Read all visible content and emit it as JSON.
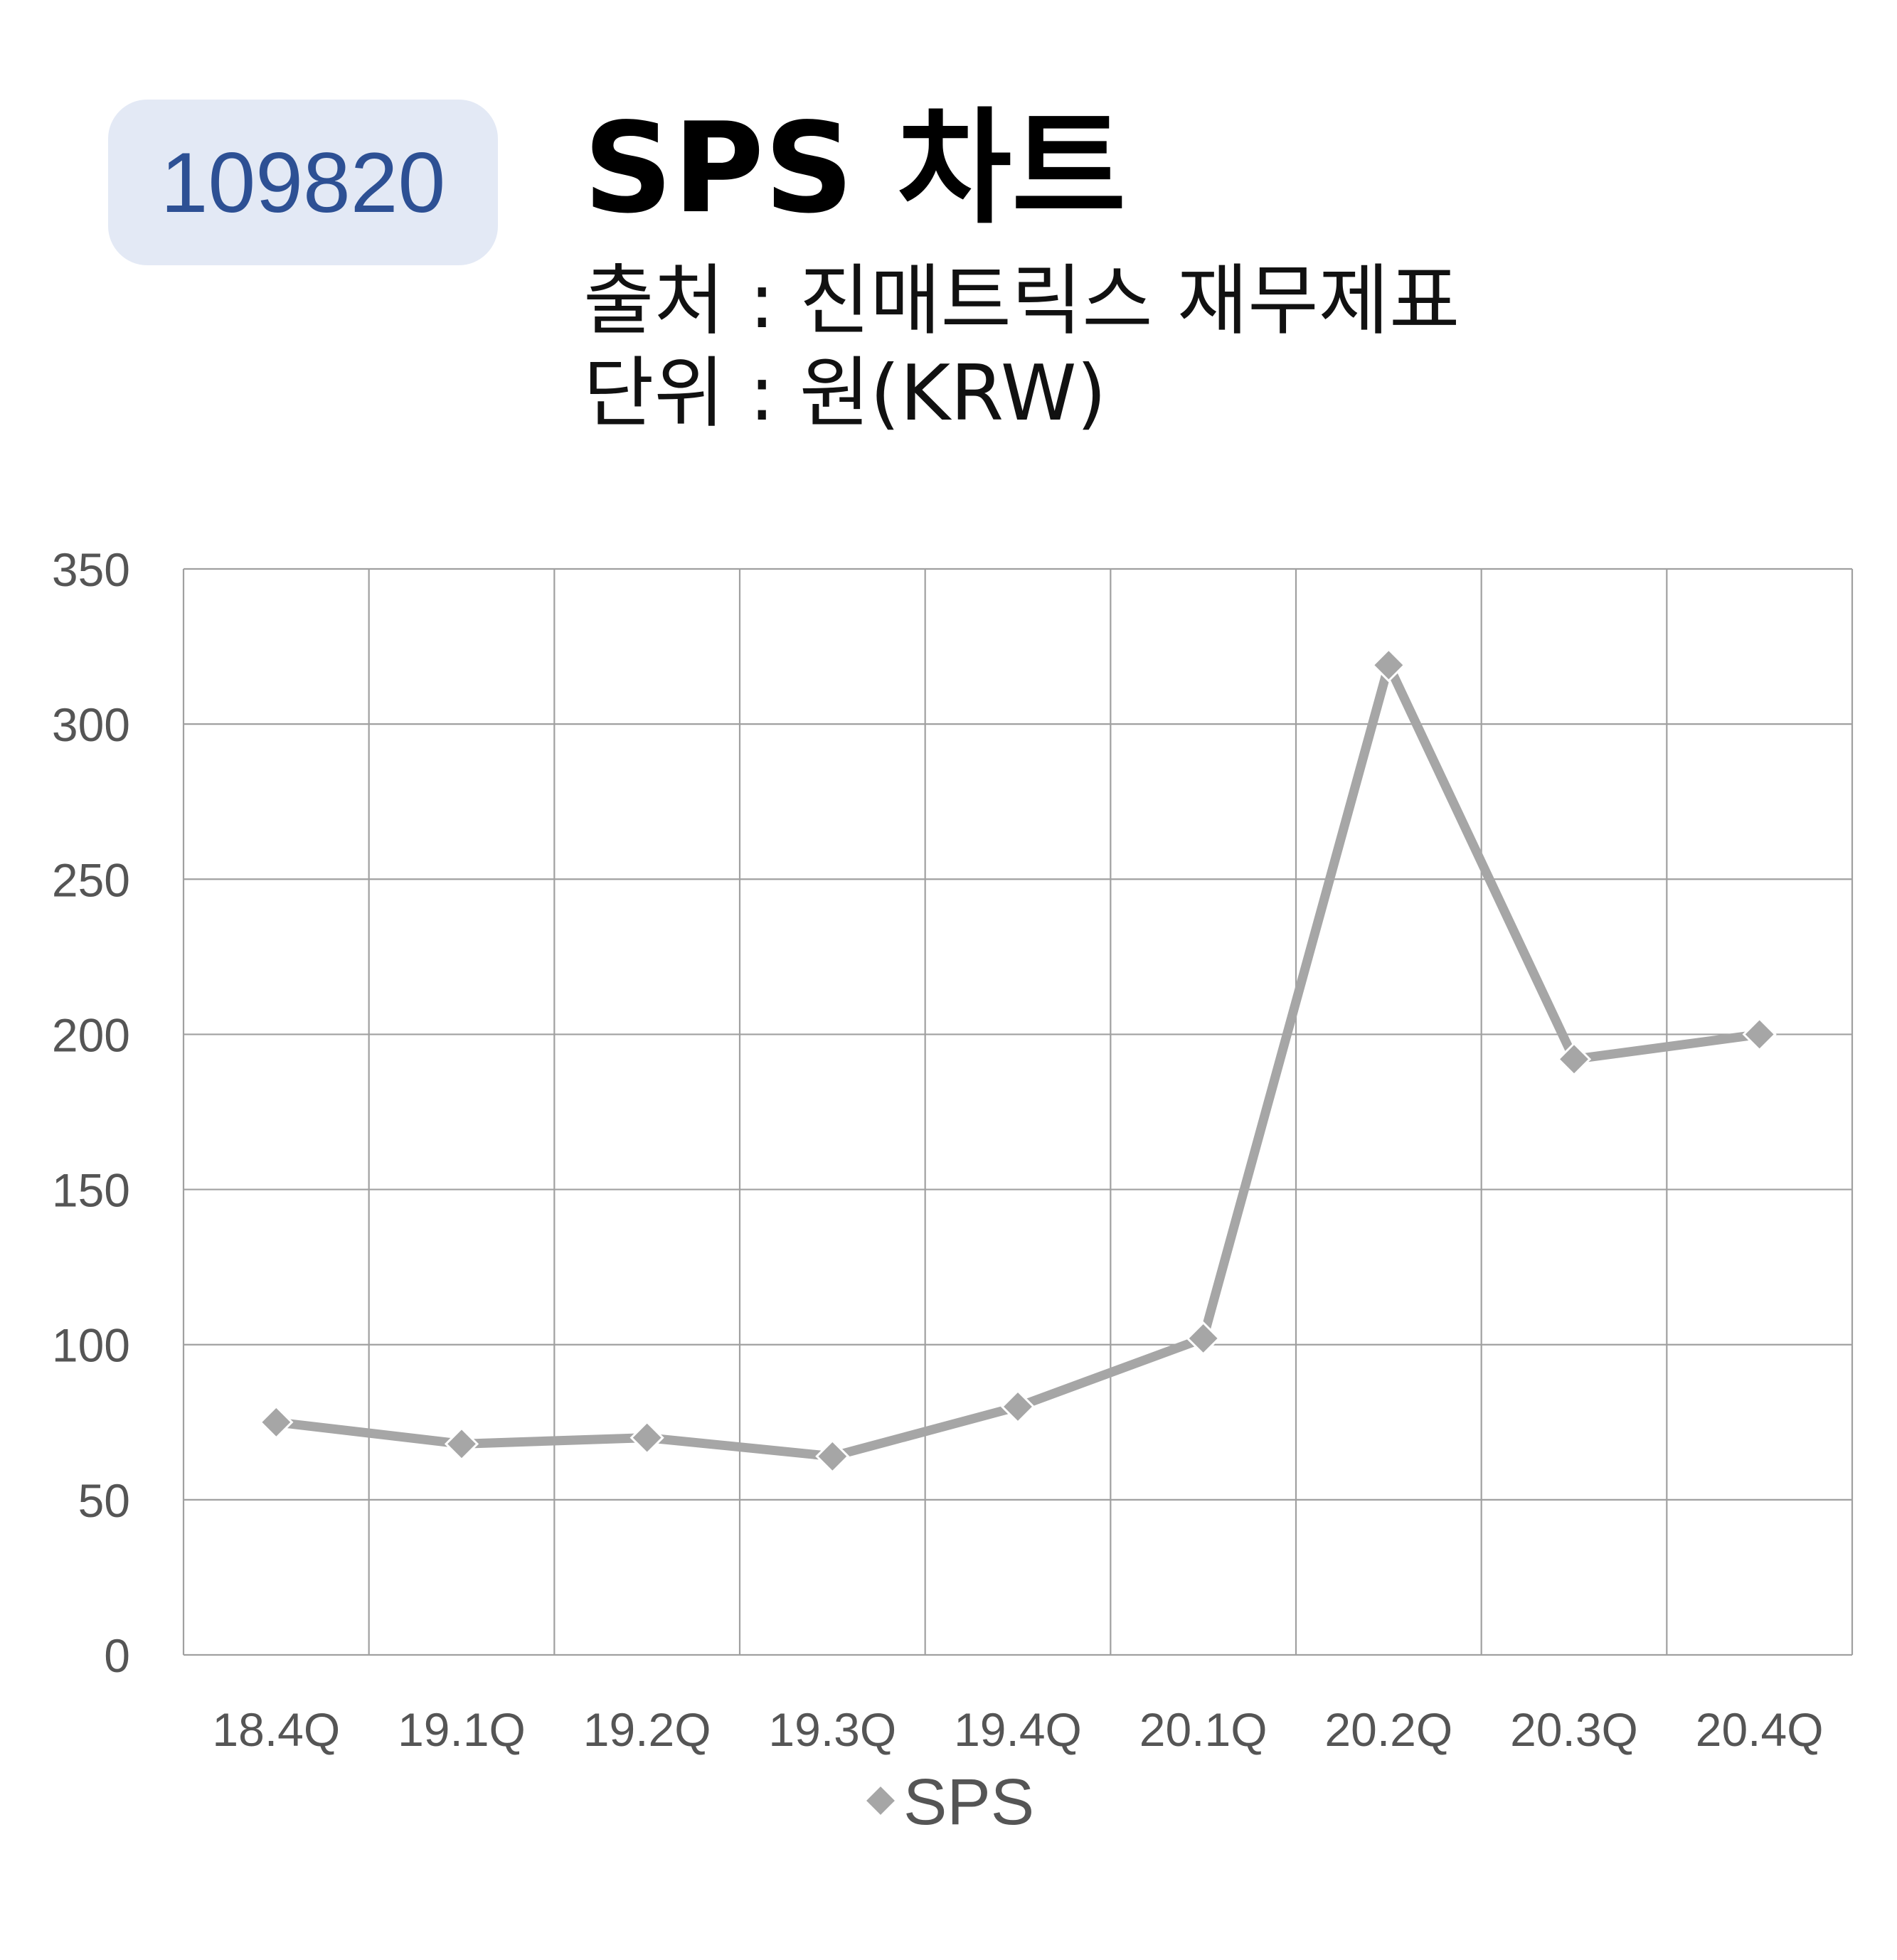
{
  "header": {
    "code": "109820",
    "title": "SPS 차트",
    "source_line": "출처 : 진매트릭스 재무제표",
    "unit_line": "단위 : 원(KRW)"
  },
  "colors": {
    "badge_bg": "#e3e9f5",
    "badge_text": "#2d5094",
    "series": "#a6a6a6",
    "grid": "#a0a0a0"
  },
  "chart_data": {
    "type": "line",
    "categories": [
      "18.4Q",
      "19.1Q",
      "19.2Q",
      "19.3Q",
      "19.4Q",
      "20.1Q",
      "20.2Q",
      "20.3Q",
      "20.4Q"
    ],
    "series": [
      {
        "name": "SPS",
        "values": [
          75,
          68,
          70,
          64,
          80,
          102,
          319,
          192,
          200
        ]
      }
    ],
    "ylim": [
      0,
      350
    ],
    "yticks": [
      0,
      50,
      100,
      150,
      200,
      250,
      300,
      350
    ],
    "grid": true,
    "legend": "bottom",
    "marker": "diamond"
  }
}
